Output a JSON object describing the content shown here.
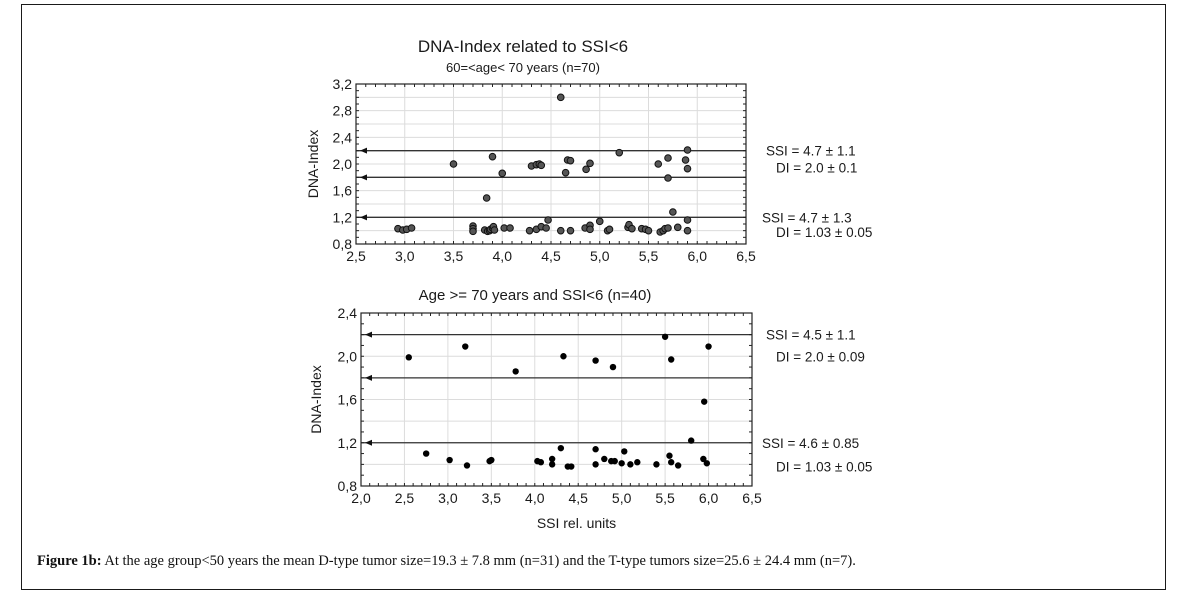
{
  "figure": {
    "caption_label": "Figure 1b:",
    "caption_text": " At the age group<50 years the mean D-type tumor size=19.3 ± 7.8 mm (n=31) and the T-type tumors size=25.6 ± 24.4 mm (n=7)."
  },
  "chart_data": [
    {
      "type": "scatter",
      "title": "DNA-Index related to SSI<6",
      "subtitle": "60=<age< 70 years (n=70)",
      "xlabel": "",
      "ylabel": "DNA-Index",
      "xlim": [
        2.5,
        6.5
      ],
      "ylim": [
        0.8,
        3.2
      ],
      "xticks": [
        "2,5",
        "3,0",
        "3,5",
        "4,0",
        "4,5",
        "5,0",
        "5,5",
        "6,0",
        "6,5"
      ],
      "xtick_values": [
        2.5,
        3.0,
        3.5,
        4.0,
        4.5,
        5.0,
        5.5,
        6.0,
        6.5
      ],
      "yticks": [
        "0,8",
        "1,2",
        "1,6",
        "2,0",
        "2,4",
        "2,8",
        "3,2"
      ],
      "ytick_values": [
        0.8,
        1.2,
        1.6,
        2.0,
        2.4,
        2.8,
        3.2
      ],
      "grid": true,
      "marker": "hash",
      "reference_lines": [
        2.2,
        1.8,
        1.2
      ],
      "annotations": [
        {
          "text": "SSI = 4.7 ± 1.1",
          "y": 2.2
        },
        {
          "text": "DI = 2.0 ± 0.1",
          "y": 1.95
        },
        {
          "text": "SSI = 4.7 ± 1.3",
          "y": 1.2
        },
        {
          "text": "DI = 1.03 ± 0.05",
          "y": 0.98
        }
      ],
      "points": [
        [
          2.93,
          1.03
        ],
        [
          2.98,
          1.01
        ],
        [
          3.02,
          1.02
        ],
        [
          3.07,
          1.04
        ],
        [
          3.5,
          2.0
        ],
        [
          3.7,
          1.07
        ],
        [
          3.7,
          1.03
        ],
        [
          3.7,
          0.99
        ],
        [
          3.82,
          1.01
        ],
        [
          3.85,
          0.99
        ],
        [
          3.87,
          1.0
        ],
        [
          3.88,
          1.02
        ],
        [
          3.9,
          1.04
        ],
        [
          3.91,
          1.06
        ],
        [
          3.92,
          1.01
        ],
        [
          3.84,
          1.49
        ],
        [
          3.9,
          2.11
        ],
        [
          4.0,
          1.86
        ],
        [
          4.02,
          1.04
        ],
        [
          4.08,
          1.04
        ],
        [
          4.28,
          1.0
        ],
        [
          4.3,
          1.97
        ],
        [
          4.35,
          1.99
        ],
        [
          4.38,
          2.0
        ],
        [
          4.4,
          1.98
        ],
        [
          4.35,
          1.02
        ],
        [
          4.4,
          1.06
        ],
        [
          4.45,
          1.04
        ],
        [
          4.47,
          1.16
        ],
        [
          4.6,
          3.0
        ],
        [
          4.6,
          1.0
        ],
        [
          4.65,
          1.87
        ],
        [
          4.67,
          2.06
        ],
        [
          4.7,
          2.05
        ],
        [
          4.7,
          1.0
        ],
        [
          4.85,
          1.04
        ],
        [
          4.86,
          1.92
        ],
        [
          4.9,
          1.08
        ],
        [
          4.9,
          2.01
        ],
        [
          4.9,
          1.02
        ],
        [
          5.0,
          1.14
        ],
        [
          5.08,
          1.0
        ],
        [
          5.1,
          1.02
        ],
        [
          5.2,
          2.17
        ],
        [
          5.29,
          1.05
        ],
        [
          5.3,
          1.09
        ],
        [
          5.33,
          1.03
        ],
        [
          5.43,
          1.03
        ],
        [
          5.47,
          1.02
        ],
        [
          5.5,
          1.0
        ],
        [
          5.6,
          2.0
        ],
        [
          5.62,
          0.98
        ],
        [
          5.65,
          1.0
        ],
        [
          5.67,
          1.03
        ],
        [
          5.7,
          1.04
        ],
        [
          5.7,
          2.09
        ],
        [
          5.7,
          1.79
        ],
        [
          5.75,
          1.28
        ],
        [
          5.8,
          1.05
        ],
        [
          5.88,
          2.06
        ],
        [
          5.9,
          2.21
        ],
        [
          5.9,
          1.93
        ],
        [
          5.9,
          1.16
        ],
        [
          5.9,
          1.0
        ]
      ]
    },
    {
      "type": "scatter",
      "title": "Age >= 70 years and SSI<6   (n=40)",
      "xlabel": "SSI rel. units",
      "ylabel": "DNA-Index",
      "xlim": [
        2.0,
        6.5
      ],
      "ylim": [
        0.8,
        2.4
      ],
      "xticks": [
        "2,0",
        "2,5",
        "3,0",
        "3,5",
        "4,0",
        "4,5",
        "5,0",
        "5,5",
        "6,0",
        "6,5"
      ],
      "xtick_values": [
        2.0,
        2.5,
        3.0,
        3.5,
        4.0,
        4.5,
        5.0,
        5.5,
        6.0,
        6.5
      ],
      "yticks": [
        "0,8",
        "1,2",
        "1,6",
        "2,0",
        "2,4"
      ],
      "ytick_values": [
        0.8,
        1.2,
        1.6,
        2.0,
        2.4
      ],
      "grid": true,
      "marker": "dot",
      "reference_lines": [
        2.2,
        1.8,
        1.2
      ],
      "annotations": [
        {
          "text": "SSI = 4.5 ± 1.1",
          "y": 2.2
        },
        {
          "text": "DI = 2.0 ± 0.09",
          "y": 2.0
        },
        {
          "text": "SSI = 4.6 ± 0.85",
          "y": 1.2
        },
        {
          "text": "DI = 1.03 ± 0.05",
          "y": 0.98
        }
      ],
      "points": [
        [
          2.55,
          1.99
        ],
        [
          2.75,
          1.1
        ],
        [
          3.02,
          1.04
        ],
        [
          3.22,
          0.99
        ],
        [
          3.2,
          2.09
        ],
        [
          3.48,
          1.03
        ],
        [
          3.5,
          1.04
        ],
        [
          3.78,
          1.86
        ],
        [
          4.03,
          1.03
        ],
        [
          4.07,
          1.02
        ],
        [
          4.2,
          1.05
        ],
        [
          4.2,
          1.0
        ],
        [
          4.3,
          1.15
        ],
        [
          4.33,
          2.0
        ],
        [
          4.38,
          0.98
        ],
        [
          4.42,
          0.98
        ],
        [
          4.7,
          1.14
        ],
        [
          4.7,
          1.0
        ],
        [
          4.7,
          1.96
        ],
        [
          4.8,
          1.05
        ],
        [
          4.88,
          1.03
        ],
        [
          4.9,
          1.9
        ],
        [
          4.92,
          1.03
        ],
        [
          5.0,
          1.01
        ],
        [
          5.03,
          1.12
        ],
        [
          5.1,
          1.0
        ],
        [
          5.18,
          1.02
        ],
        [
          5.4,
          1.0
        ],
        [
          5.5,
          2.18
        ],
        [
          5.55,
          1.08
        ],
        [
          5.57,
          1.02
        ],
        [
          5.57,
          1.97
        ],
        [
          5.65,
          0.99
        ],
        [
          5.8,
          1.22
        ],
        [
          5.95,
          1.58
        ],
        [
          5.94,
          1.05
        ],
        [
          5.98,
          1.01
        ],
        [
          6.0,
          2.09
        ]
      ]
    }
  ]
}
